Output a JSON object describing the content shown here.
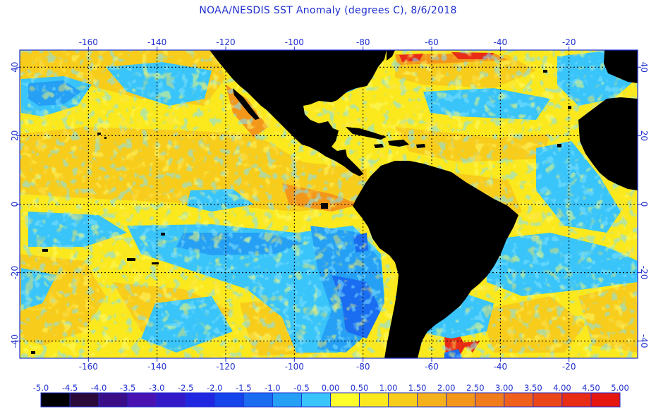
{
  "title": "NOAA/NESDIS SST Anomaly (degrees C), 8/6/2018",
  "axes": {
    "lon_ticks_top": [
      "-160",
      "-140",
      "-120",
      "-100",
      "-80",
      "-60",
      "-40",
      "-20"
    ],
    "lon_ticks_bottom": [
      "-160",
      "-140",
      "-120",
      "-100",
      "-80",
      "-60",
      "-40",
      "-20"
    ],
    "lat_ticks_left": [
      "40",
      "20",
      "0",
      "-20",
      "-40"
    ],
    "lat_ticks_right": [
      "40",
      "20",
      "0",
      "-20",
      "-40"
    ],
    "lon_values": [
      -160,
      -140,
      -120,
      -100,
      -80,
      -60,
      -40,
      -20
    ],
    "lat_values": [
      40,
      20,
      0,
      -20,
      -40
    ],
    "lon_range": [
      -180,
      0
    ],
    "lat_range": [
      -45,
      45
    ]
  },
  "colorbar": {
    "labels": [
      "-5.0",
      "-4.5",
      "-4.0",
      "-3.5",
      "-3.0",
      "-2.5",
      "-2.0",
      "-1.5",
      "-1.0",
      "-0.5",
      "0.00",
      "0.50",
      "1.00",
      "1.50",
      "2.00",
      "2.50",
      "3.00",
      "3.50",
      "4.00",
      "4.50",
      "5.00"
    ],
    "colors": [
      "#000000",
      "#2b0a3a",
      "#3b0d86",
      "#4a12b0",
      "#3419c8",
      "#2127e0",
      "#1544ea",
      "#1a6cf0",
      "#25a0f5",
      "#39c4fa",
      "#fefe2a",
      "#fbe81d",
      "#f8cc1b",
      "#f5b11b",
      "#f3971b",
      "#f07c1c",
      "#ee601c",
      "#eb461a",
      "#e82c16",
      "#e51510"
    ]
  },
  "map_colors": {
    "land": "#000000",
    "warm_light": "#fbe81d",
    "warm": "#f8cc1b",
    "warm_strong": "#f3971b",
    "hot": "#e82c16",
    "neutral": "#fefe2a",
    "cool": "#39c4fa",
    "cold": "#25a0f5",
    "colder": "#1a6cf0",
    "coldest": "#2127e0",
    "grid": "#1f2fd0"
  }
}
